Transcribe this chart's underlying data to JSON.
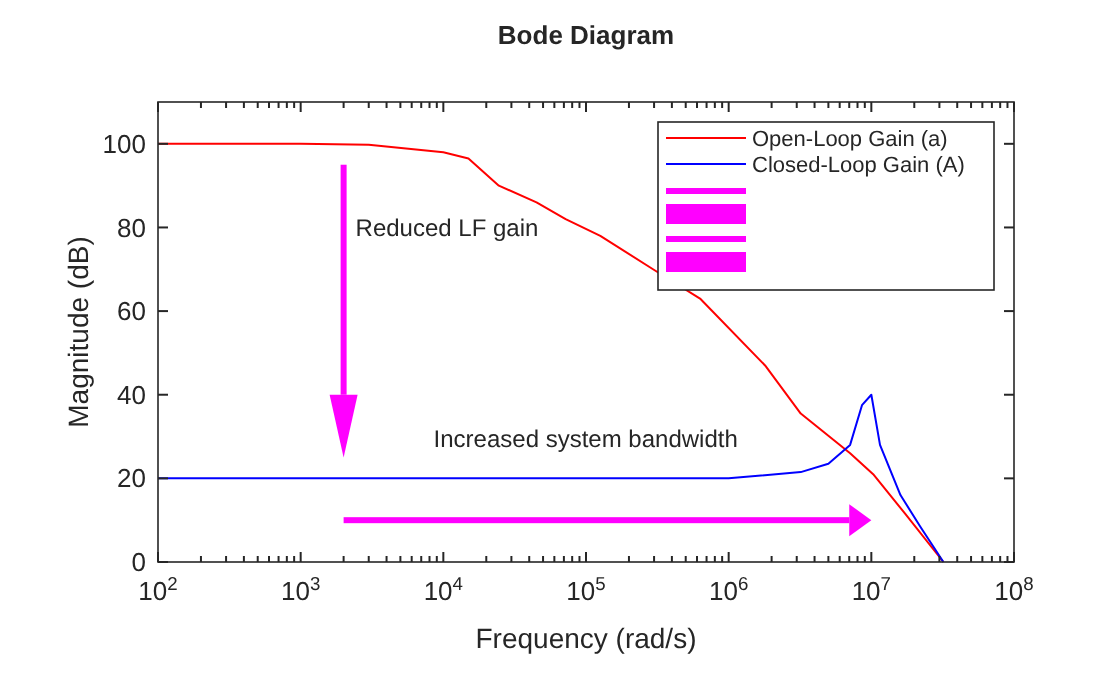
{
  "chart_data": {
    "type": "line",
    "title": "Bode Diagram",
    "xlabel": "Frequency (rad/s)",
    "ylabel": "Magnitude (dB)",
    "log": "x",
    "xlim": [
      100,
      100000000
    ],
    "ylim": [
      0,
      110
    ],
    "xticks": [
      {
        "value": 100,
        "label": "10$^{2}$"
      },
      {
        "value": 1000,
        "label": "10$^{3}$"
      },
      {
        "value": 10000,
        "label": "10$^{4}$"
      },
      {
        "value": 100000,
        "label": "10$^{5}$"
      },
      {
        "value": 1000000,
        "label": "10$^{6}$"
      },
      {
        "value": 10000000,
        "label": "10$^{7}$"
      },
      {
        "value": 100000000,
        "label": "10$^{8}$"
      }
    ],
    "yticks": [
      0,
      20,
      40,
      60,
      80,
      100
    ],
    "grid": false,
    "legend": "top right",
    "line_style": "solid",
    "marker": "none",
    "series": [
      {
        "name": "Open-Loop Gain (a)",
        "color": "#ff0000",
        "x": [
          100,
          1000,
          3000,
          10000,
          15000,
          24500,
          45000,
          72000,
          126000,
          295000,
          630000,
          1800000,
          3200000,
          7100000,
          10300000,
          17300000,
          32000000
        ],
        "values": [
          100,
          100,
          99.8,
          98,
          96.5,
          90,
          86,
          82,
          78,
          70,
          63,
          47,
          35.5,
          26,
          21,
          11.5,
          0
        ]
      },
      {
        "name": "Closed-Loop Gain (A)",
        "color": "#0000ff",
        "x": [
          100,
          1000,
          100000,
          1000000,
          3200000,
          5000000,
          7100000,
          8600000,
          10000000,
          11500000,
          16000000,
          22000000,
          32000000
        ],
        "values": [
          20,
          20,
          20,
          20,
          21.5,
          23.5,
          28,
          37.5,
          40,
          28,
          16,
          8.5,
          0
        ]
      }
    ],
    "annotations": [
      "Reduced LF gain",
      "Increased system bandwidth"
    ]
  }
}
